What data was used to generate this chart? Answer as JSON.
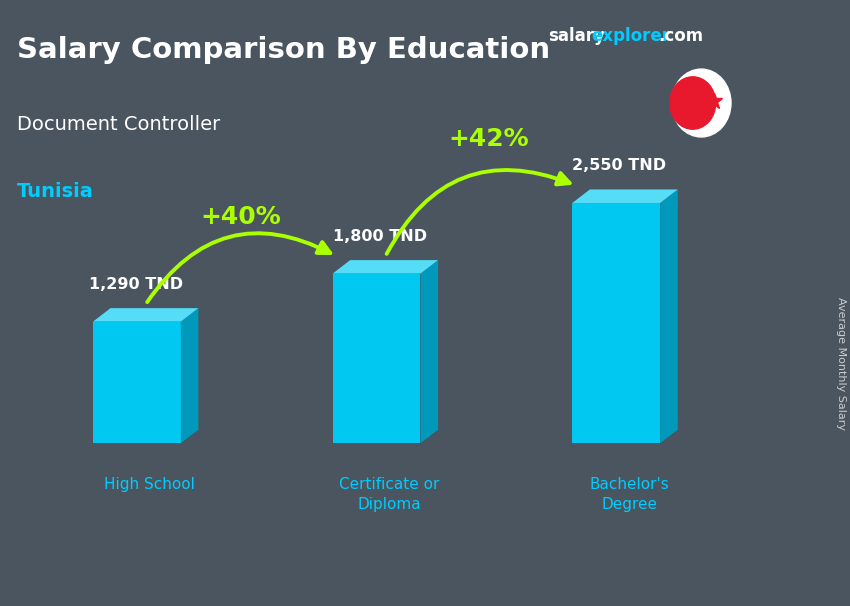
{
  "title_main": "Salary Comparison By Education",
  "title_sub": "Document Controller",
  "title_country": "Tunisia",
  "watermark_salary": "salary",
  "watermark_explorer": "explorer",
  "watermark_com": ".com",
  "ylabel": "Average Monthly Salary",
  "categories": [
    "High School",
    "Certificate or\nDiploma",
    "Bachelor's\nDegree"
  ],
  "values": [
    1290,
    1800,
    2550
  ],
  "value_labels": [
    "1,290 TND",
    "1,800 TND",
    "2,550 TND"
  ],
  "pct_labels": [
    "+40%",
    "+42%"
  ],
  "bar_color_face": "#00c8f0",
  "bar_color_side": "#0099bb",
  "bar_color_top": "#55ddf8",
  "bg_color": "#4a5560",
  "text_color_white": "#ffffff",
  "text_color_cyan": "#00ccff",
  "text_color_green": "#aaff00",
  "arrow_color": "#aaff00",
  "ylabel_color": "#cccccc",
  "fig_width": 8.5,
  "fig_height": 6.06,
  "dpi": 100
}
